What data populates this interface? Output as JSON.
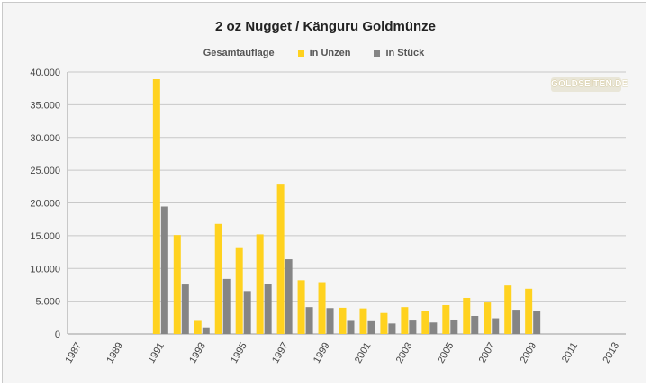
{
  "chart_data": {
    "type": "bar",
    "title": "2 oz Nugget / Känguru Goldmünze",
    "legend_title": "Gesamtauflage",
    "legend_position": "top",
    "watermark": "GOLDSEITEN.DE",
    "xlabel": "",
    "ylabel": "",
    "ylim": [
      0,
      40000
    ],
    "yticks": [
      0,
      5000,
      10000,
      15000,
      20000,
      25000,
      30000,
      35000,
      40000
    ],
    "ytick_labels": [
      "0",
      "5.000",
      "10.000",
      "15.000",
      "20.000",
      "25.000",
      "30.000",
      "35.000",
      "40.000"
    ],
    "grid": true,
    "categories": [
      "1987",
      "1988",
      "1989",
      "1990",
      "1991",
      "1992",
      "1993",
      "1994",
      "1995",
      "1996",
      "1997",
      "1998",
      "1999",
      "2000",
      "2001",
      "2002",
      "2003",
      "2004",
      "2005",
      "2006",
      "2007",
      "2008",
      "2009",
      "2010",
      "2011",
      "2012",
      "2013"
    ],
    "xtick_labels": [
      "1987",
      "1989",
      "1991",
      "1993",
      "1995",
      "1997",
      "1999",
      "2001",
      "2003",
      "2005",
      "2007",
      "2009",
      "2011",
      "2013"
    ],
    "series": [
      {
        "name": "in Unzen",
        "color": "#ffd21f",
        "values": [
          0,
          0,
          0,
          0,
          38900,
          15100,
          2000,
          16800,
          13100,
          15200,
          22800,
          8200,
          7900,
          4000,
          3900,
          3200,
          4100,
          3500,
          4400,
          5500,
          4800,
          7400,
          6900,
          0,
          0,
          0,
          0
        ]
      },
      {
        "name": "in Stück",
        "color": "#858585",
        "values": [
          0,
          0,
          0,
          0,
          19450,
          7550,
          1000,
          8400,
          6550,
          7600,
          11400,
          4100,
          3950,
          2000,
          1950,
          1600,
          2050,
          1750,
          2200,
          2750,
          2400,
          3700,
          3450,
          0,
          0,
          0,
          0
        ]
      }
    ]
  }
}
